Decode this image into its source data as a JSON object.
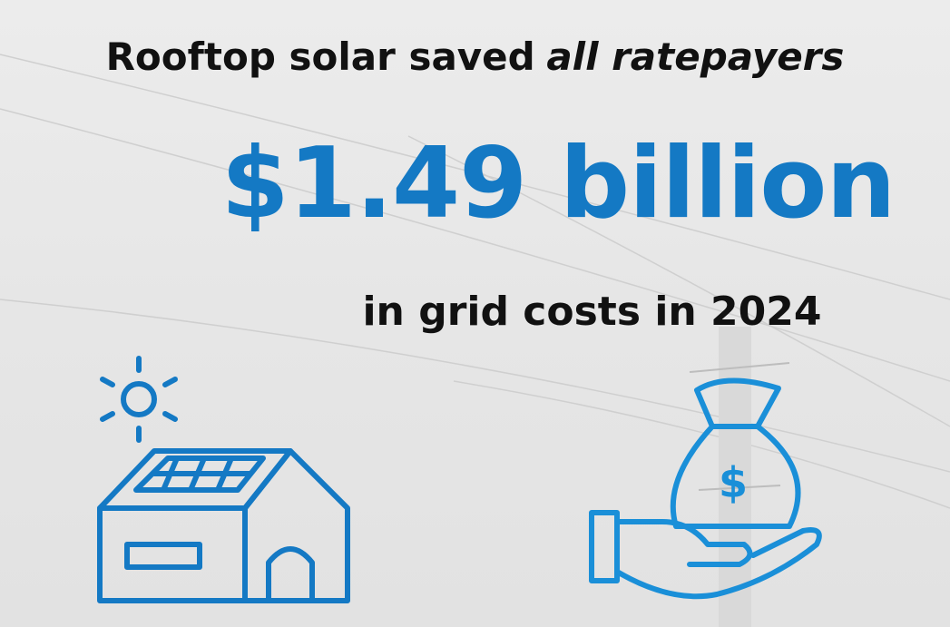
{
  "headline": {
    "text": "Rooftop solar saved",
    "emphasis": "all ratepayers"
  },
  "amount": "$1.49 billion",
  "caption": "in grid costs in 2024"
}
